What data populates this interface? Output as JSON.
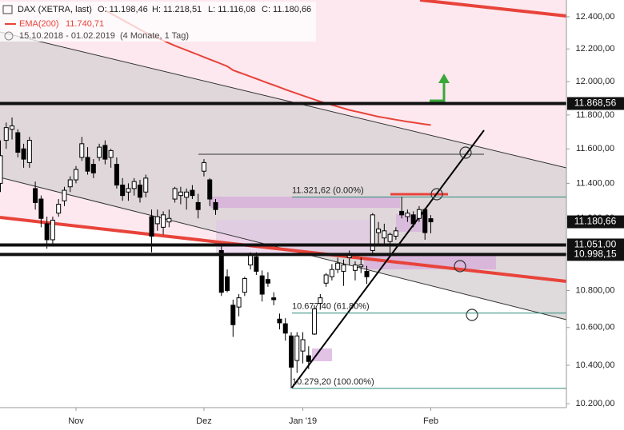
{
  "chart_data": {
    "type": "candlestick",
    "title": "DAX (XETRA, last)",
    "header_values": [
      "O: 11.198,46",
      "H: 11.218,51",
      "L: 11.116,08",
      "C: 11.180,66"
    ],
    "ema_name": "EMA(200)",
    "ema_value_label": "11.740,71",
    "date_range": "15.10.2018 - 01.02.2019",
    "period": "(4 Monate, 1 Tag)",
    "log_scale": true,
    "ylim": [
      10180,
      12505
    ],
    "yticks": [
      {
        "value": 10200,
        "label": "10.200,00"
      },
      {
        "value": 10400,
        "label": "10.400,00"
      },
      {
        "value": 10600,
        "label": "10.600,00"
      },
      {
        "value": 10800,
        "label": "10.800,00"
      },
      {
        "value": 11000,
        "label": "11.000,00"
      },
      {
        "value": 11200,
        "label": "11.200,00"
      },
      {
        "value": 11400,
        "label": "11.400,00"
      },
      {
        "value": 11600,
        "label": "11.600,00"
      },
      {
        "value": 11800,
        "label": "11.800,00"
      },
      {
        "value": 12000,
        "label": "12.000,00"
      },
      {
        "value": 12200,
        "label": "12.200,00"
      },
      {
        "value": 12400,
        "label": "12.400,00"
      }
    ],
    "xticks": [
      {
        "value": 13,
        "label": "Nov"
      },
      {
        "value": 35,
        "label": "Dez"
      },
      {
        "value": 52,
        "label": "Jan '19"
      },
      {
        "value": 74,
        "label": "Feb"
      }
    ],
    "up_color": "#ffffff",
    "down_color": "#000000",
    "open": [
      11400,
      11650,
      11715,
      11695,
      11600,
      11520,
      11370,
      11310,
      11170,
      11080,
      11230,
      11300,
      11380,
      11420,
      11550,
      11550,
      11510,
      11550,
      11620,
      11550,
      11510,
      11390,
      11350,
      11370,
      11390,
      11350,
      11210,
      11170,
      11150,
      11180,
      11310,
      11330,
      11320,
      11360,
      11290,
      11470,
      11420,
      11290,
      11020,
      10875,
      10720,
      10710,
      10790,
      10940,
      10985,
      10880,
      10860,
      10760,
      10645,
      10620,
      10555,
      10425,
      10475,
      10450,
      10565,
      10730,
      10840,
      10875,
      10915,
      10905,
      10980,
      10910,
      10930,
      10905,
      11020,
      11120,
      11090,
      11070,
      11100,
      11240,
      11210,
      11220,
      11200,
      11250,
      11198.46
    ],
    "high": [
      11650,
      11755,
      11785,
      11715,
      11630,
      11670,
      11410,
      11330,
      11210,
      11210,
      11310,
      11380,
      11440,
      11500,
      11670,
      11610,
      11540,
      11630,
      11650,
      11600,
      11550,
      11430,
      11400,
      11430,
      11420,
      11450,
      11250,
      11250,
      11240,
      11250,
      11380,
      11380,
      11370,
      11390,
      11340,
      11540,
      11430,
      11310,
      11060,
      10915,
      10750,
      10780,
      10875,
      11010,
      11010,
      10910,
      10900,
      10790,
      10675,
      10650,
      10575,
      10575,
      10575,
      10500,
      10720,
      10780,
      10895,
      10945,
      10980,
      10970,
      11020,
      10960,
      10980,
      10935,
      11230,
      11180,
      11170,
      11120,
      11150,
      11321.62,
      11250,
      11240,
      11270,
      11260,
      11218.51
    ],
    "low": [
      11350,
      11600,
      11655,
      11550,
      11490,
      11490,
      11250,
      11150,
      11030,
      11050,
      11210,
      11270,
      11350,
      11400,
      11530,
      11450,
      11430,
      11530,
      11510,
      11490,
      11370,
      11300,
      11300,
      11330,
      11290,
      11320,
      11010,
      11130,
      11110,
      11150,
      11290,
      11280,
      11250,
      11310,
      11200,
      11440,
      11270,
      11220,
      10770,
      10790,
      10550,
      10660,
      10770,
      10915,
      10885,
      10740,
      10820,
      10720,
      10590,
      10530,
      10279.2,
      10360,
      10410,
      10380,
      10560,
      10700,
      10820,
      10855,
      10895,
      10825,
      10940,
      10855,
      10895,
      10835,
      10990,
      11050,
      11050,
      11000,
      11080,
      11200,
      11180,
      11150,
      11180,
      11080,
      11116.08
    ],
    "close": [
      11560,
      11725,
      11735,
      11580,
      11540,
      11650,
      11290,
      11200,
      11080,
      11190,
      11280,
      11360,
      11420,
      11480,
      11630,
      11470,
      11460,
      11610,
      11540,
      11590,
      11390,
      11330,
      11370,
      11410,
      11320,
      11430,
      11100,
      11210,
      11220,
      11200,
      11370,
      11350,
      11350,
      11330,
      11250,
      11520,
      11310,
      11250,
      10790,
      10800,
      10615,
      10760,
      10865,
      11000,
      10905,
      10780,
      10840,
      10750,
      10625,
      10570,
      10390,
      10555,
      10535,
      10420,
      10700,
      10760,
      10885,
      10915,
      10950,
      10940,
      11000,
      10940,
      10940,
      10875,
      11220,
      11140,
      11130,
      11110,
      11130,
      11220,
      11230,
      11170,
      11250,
      11120,
      11180.66
    ],
    "last_label": "11.180,66",
    "ema_color": "#e8433a",
    "ema": [
      null,
      null,
      null,
      null,
      null,
      null,
      null,
      null,
      null,
      null,
      null,
      null,
      null,
      null,
      null,
      null,
      null,
      null,
      12440,
      12420,
      12400,
      12380,
      12360,
      12340,
      12320,
      12300,
      12284,
      12268,
      12252,
      12236,
      12220,
      12206,
      12192,
      12178,
      12164,
      12150,
      12136,
      12122,
      12108,
      12094,
      12070,
      12057,
      12044,
      12031,
      12018,
      12005,
      11992,
      11979,
      11966,
      11953,
      11940,
      11928,
      11916,
      11904,
      11892,
      11880,
      11870,
      11860,
      11850,
      11840,
      11830,
      11822,
      11814,
      11806,
      11798,
      11790,
      11784,
      11778,
      11772,
      11766,
      11760,
      11755,
      11750,
      11745,
      11740.71
    ],
    "hlines": [
      {
        "value": 11868.56,
        "label": "11.868,56"
      },
      {
        "value": 11051,
        "label": "11.051,00"
      },
      {
        "value": 10998.15,
        "label": "10.998,15"
      }
    ],
    "fibs": [
      {
        "value": 11321.62,
        "label": "11.321,62 (0.00%)"
      },
      {
        "value": 10677.4,
        "label": "10.677,40 (61.80%)"
      },
      {
        "value": 10279.2,
        "label": "10.279,20 (100.00%)"
      }
    ]
  }
}
